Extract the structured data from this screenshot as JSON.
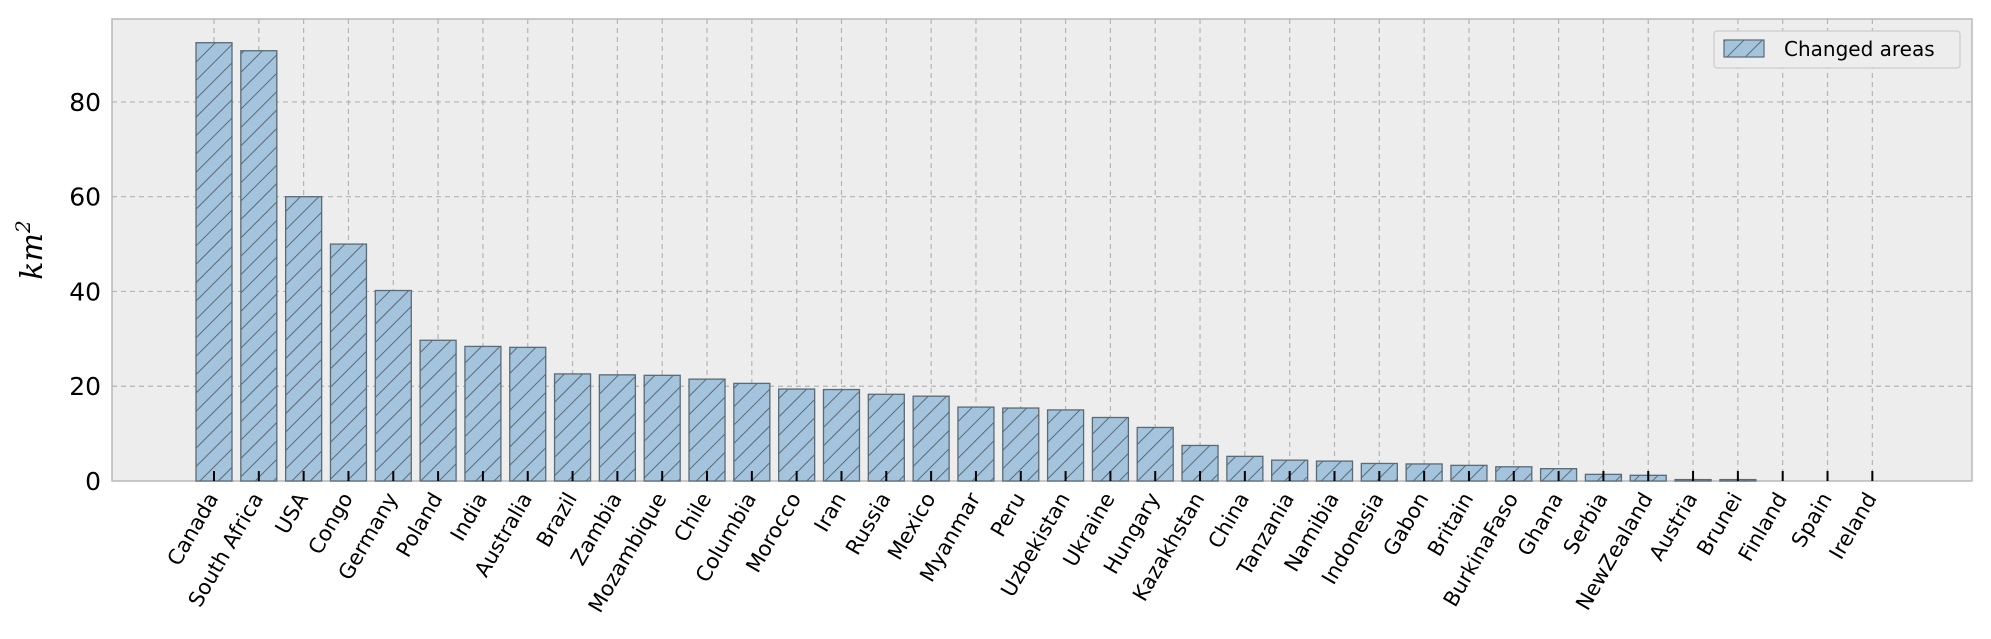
{
  "chart_data": {
    "type": "bar",
    "title": "",
    "xlabel": "",
    "ylabel": "km",
    "ylabel_superscript": "2",
    "ylim": [
      0,
      97.5
    ],
    "yticks": [
      0,
      20,
      40,
      60,
      80
    ],
    "grid": true,
    "legend_position": "top-right",
    "categories": [
      "Canada",
      "South Africa",
      "USA",
      "Congo",
      "Germany",
      "Poland",
      "India",
      "Australia",
      "Brazil",
      "Zambia",
      "Mozambique",
      "Chile",
      "Columbia",
      "Morocco",
      "Iran",
      "Russia",
      "Mexico",
      "Myanmar",
      "Peru",
      "Uzbekistan",
      "Ukraine",
      "Hungary",
      "Kazakhstan",
      "China",
      "Tanzania",
      "Namibia",
      "Indonesia",
      "Gabon",
      "Britain",
      "BurkinaFaso",
      "Ghana",
      "Serbia",
      "NewZealand",
      "Austria",
      "Brunei",
      "Finland",
      "Spain",
      "Ireland"
    ],
    "series": [
      {
        "name": "Changed areas",
        "color": "#a3c4dc",
        "edge_color": "#5a6a76",
        "hatch": "diagonal",
        "values": [
          92.5,
          90.8,
          60.0,
          50.0,
          40.2,
          29.7,
          28.4,
          28.2,
          22.6,
          22.4,
          22.3,
          21.5,
          20.6,
          19.4,
          19.3,
          18.3,
          17.9,
          15.6,
          15.4,
          15.0,
          13.4,
          11.3,
          7.5,
          5.2,
          4.4,
          4.2,
          3.7,
          3.6,
          3.3,
          3.0,
          2.6,
          1.4,
          1.2,
          0.3,
          0.3,
          0.0,
          0.0,
          0.0
        ]
      }
    ]
  }
}
